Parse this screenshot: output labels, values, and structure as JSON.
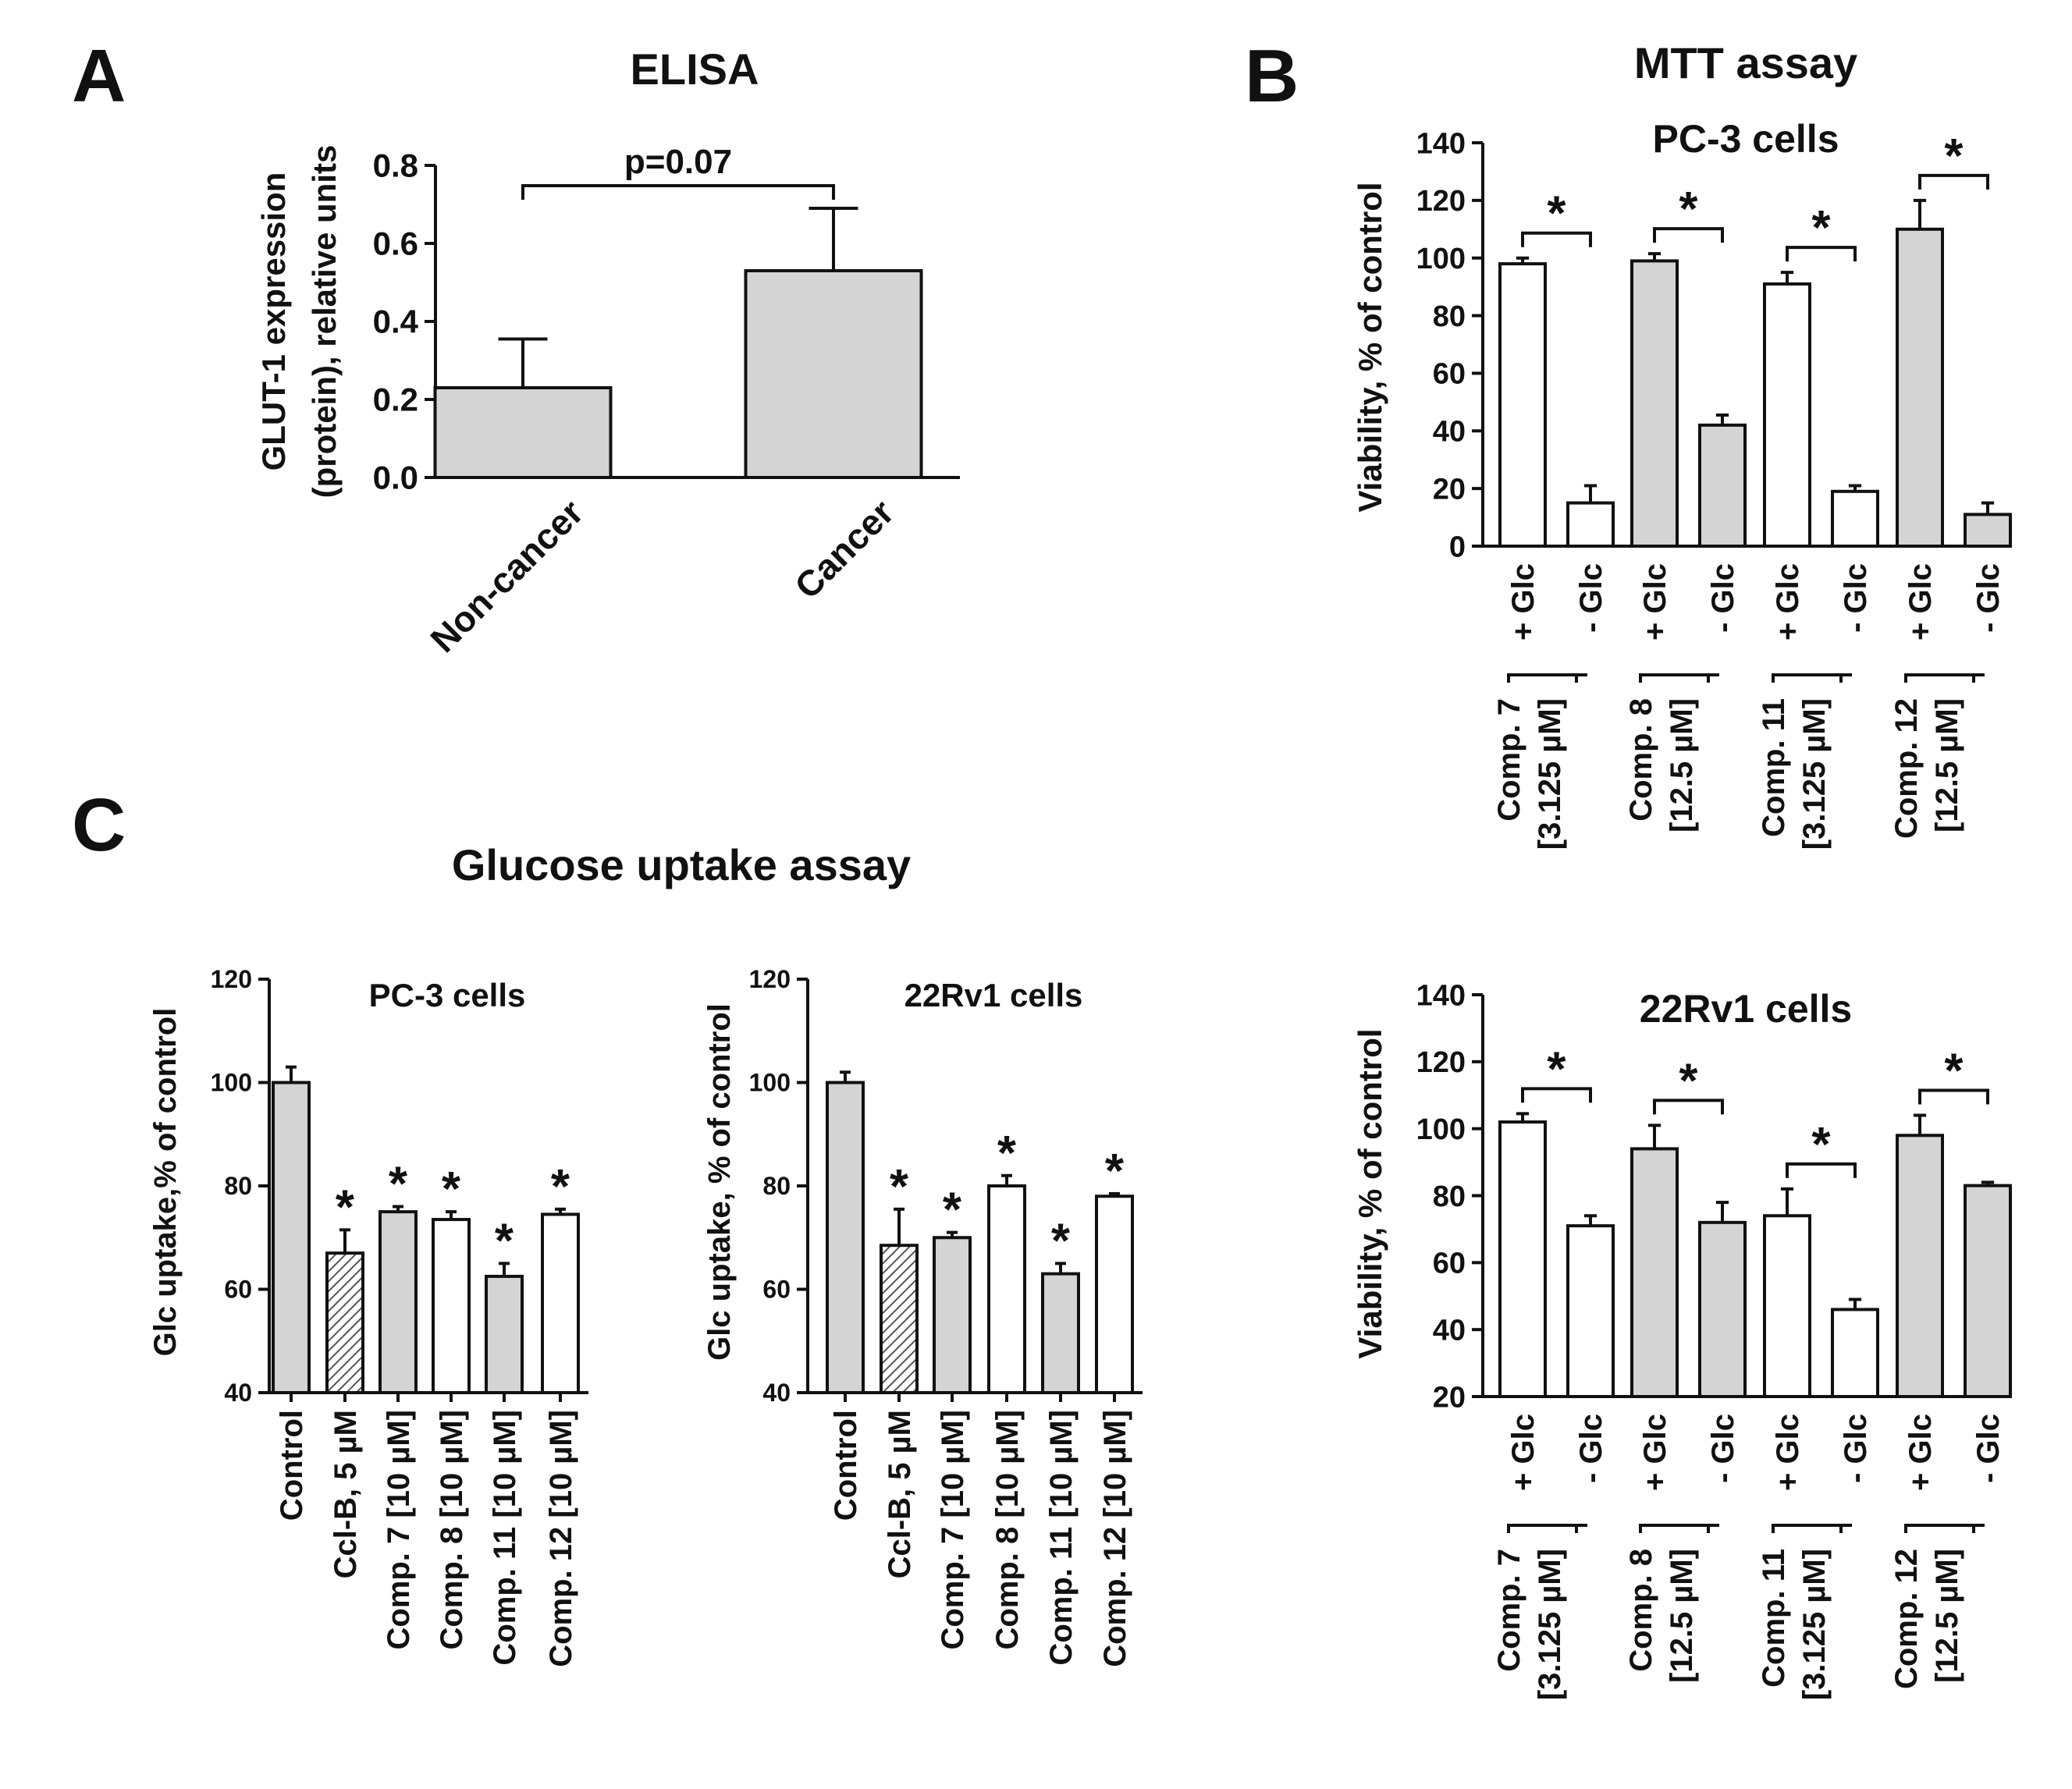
{
  "panels": [
    {
      "id": "A",
      "letter": "A",
      "title": "ELISA"
    },
    {
      "id": "B",
      "letter": "B",
      "title": "MTT assay"
    },
    {
      "id": "C",
      "letter": "C",
      "title": "Glucose uptake assay"
    }
  ],
  "colors": {
    "gray": "#d4d4d4",
    "white": "#ffffff",
    "stroke": "#111111",
    "hatch": "#555555"
  },
  "chart_data": [
    {
      "id": "elisa",
      "type": "bar",
      "ylabel_lines": [
        "GLUT-1 expression",
        "(protein), relative units"
      ],
      "ylim": [
        0,
        0.8
      ],
      "yticks": [
        0,
        0.2,
        0.4,
        0.6,
        0.8
      ],
      "ytick_labels": [
        "0.0",
        "0.2",
        "0.4",
        "0.6",
        "0.8"
      ],
      "categories": [
        "Non-cancer",
        "Cancer"
      ],
      "values": [
        0.23,
        0.53
      ],
      "errors": [
        0.125,
        0.16
      ],
      "fills": [
        "gray",
        "gray"
      ],
      "brackets": [
        {
          "from": 0,
          "to": 1,
          "label": "p=0.07"
        }
      ]
    },
    {
      "id": "mtt-pc3",
      "type": "bar",
      "title": "PC-3 cells",
      "ylabel": "Viability, % of control",
      "ylim": [
        0,
        140
      ],
      "yticks": [
        0,
        20,
        40,
        60,
        80,
        100,
        120,
        140
      ],
      "ytick_labels": [
        "0",
        "20",
        "40",
        "60",
        "80",
        "100",
        "120",
        "140"
      ],
      "categories": [
        "+ Glc",
        "- Glc",
        "+ Glc",
        "- Glc",
        "+ Glc",
        "- Glc",
        "+ Glc",
        "- Glc"
      ],
      "values": [
        98,
        15,
        99,
        42,
        91,
        19,
        110,
        11
      ],
      "errors": [
        2,
        6,
        2.5,
        3.5,
        4,
        2,
        10,
        4
      ],
      "fills": [
        "white",
        "white",
        "gray",
        "gray",
        "white",
        "white",
        "gray",
        "gray"
      ],
      "groups": [
        {
          "line1": "Comp. 7",
          "line2": "[3.125 µM]"
        },
        {
          "line1": "Comp. 8",
          "line2": "[12.5 µM]"
        },
        {
          "line1": "Comp. 11",
          "line2": "[3.125 µM]"
        },
        {
          "line1": "Comp. 12",
          "line2": "[12.5 µM]"
        }
      ],
      "brackets": [
        {
          "from": 0,
          "to": 1,
          "label": "*"
        },
        {
          "from": 2,
          "to": 3,
          "label": "*"
        },
        {
          "from": 4,
          "to": 5,
          "label": "*"
        },
        {
          "from": 6,
          "to": 7,
          "label": "*"
        }
      ]
    },
    {
      "id": "mtt-22rv1",
      "type": "bar",
      "title": "22Rv1 cells",
      "ylabel": "Viability, % of control",
      "ylim": [
        20,
        140
      ],
      "yticks": [
        20,
        40,
        60,
        80,
        100,
        120,
        140
      ],
      "ytick_labels": [
        "20",
        "40",
        "60",
        "80",
        "100",
        "120",
        "140"
      ],
      "categories": [
        "+ Glc",
        "- Glc",
        "+ Glc",
        "- Glc",
        "+ Glc",
        "- Glc",
        "+ Glc",
        "- Glc"
      ],
      "values": [
        102,
        71,
        94,
        72,
        74,
        46,
        98,
        83
      ],
      "errors": [
        2.5,
        3,
        7,
        6,
        8,
        3,
        6,
        1
      ],
      "fills": [
        "white",
        "white",
        "gray",
        "gray",
        "white",
        "white",
        "gray",
        "gray"
      ],
      "groups": [
        {
          "line1": "Comp. 7",
          "line2": "[3.125 µM]"
        },
        {
          "line1": "Comp. 8",
          "line2": "[12.5 µM]"
        },
        {
          "line1": "Comp. 11",
          "line2": "[3.125 µM]"
        },
        {
          "line1": "Comp. 12",
          "line2": "[12.5 µM]"
        }
      ],
      "brackets": [
        {
          "from": 0,
          "to": 1,
          "label": "*"
        },
        {
          "from": 2,
          "to": 3,
          "label": "*"
        },
        {
          "from": 4,
          "to": 5,
          "label": "*"
        },
        {
          "from": 6,
          "to": 7,
          "label": "*"
        }
      ]
    },
    {
      "id": "glc-pc3",
      "type": "bar",
      "title": "PC-3 cells",
      "ylabel": "Glc uptake,% of control",
      "ylim": [
        40,
        120
      ],
      "yticks": [
        40,
        60,
        80,
        100,
        120
      ],
      "ytick_labels": [
        "40",
        "60",
        "80",
        "100",
        "120"
      ],
      "categories": [
        "Control",
        "Ccl-B, 5 µM",
        "Comp. 7 [10 µM]",
        "Comp. 8 [10 µM]",
        "Comp. 11 [10 µM]",
        "Comp. 12 [10 µM]"
      ],
      "values": [
        100,
        67,
        75,
        73.5,
        62.5,
        74.5
      ],
      "errors": [
        3,
        4.5,
        1,
        1.5,
        2.5,
        1
      ],
      "fills": [
        "gray",
        "hatch",
        "gray",
        "white",
        "gray",
        "white"
      ],
      "stars": [
        false,
        true,
        true,
        true,
        true,
        true
      ]
    },
    {
      "id": "glc-22rv1",
      "type": "bar",
      "title": "22Rv1 cells",
      "ylabel": "Glc uptake, % of control",
      "ylim": [
        40,
        120
      ],
      "yticks": [
        40,
        60,
        80,
        100,
        120
      ],
      "ytick_labels": [
        "40",
        "60",
        "80",
        "100",
        "120"
      ],
      "categories": [
        "Control",
        "Ccl-B, 5 µM",
        "Comp. 7 [10 µM]",
        "Comp. 8 [10 µM]",
        "Comp. 11 [10 µM]",
        "Comp. 12 [10 µM]"
      ],
      "values": [
        100,
        68.5,
        70,
        80,
        63,
        78
      ],
      "errors": [
        2,
        7,
        1,
        2,
        2,
        0.5
      ],
      "fills": [
        "gray",
        "hatch",
        "gray",
        "white",
        "gray",
        "white"
      ],
      "stars": [
        false,
        true,
        true,
        true,
        true,
        true
      ]
    }
  ]
}
